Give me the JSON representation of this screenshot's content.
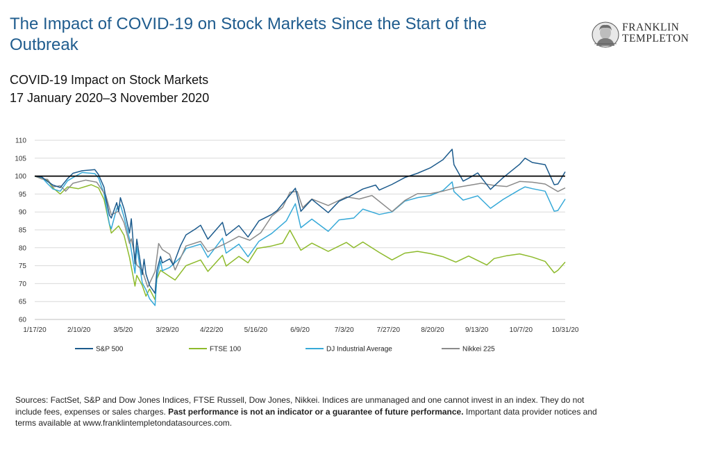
{
  "page": {
    "title": "The Impact of COVID-19 on Stock Markets Since the Start of the Outbreak",
    "subtitle_line1": "COVID-19 Impact on Stock Markets",
    "subtitle_line2": "17 January 2020–3 November 2020",
    "logo_line1": "FRANKLIN",
    "logo_line2": "TEMPLETON",
    "logo_icon": "benjamin-franklin-portrait-icon",
    "footnote_part1": "Sources: FactSet, S&P and Dow Jones Indices, FTSE Russell, Dow Jones, Nikkei. Indices are unmanaged and one cannot invest in an index. They do not include fees, expenses or sales charges. ",
    "footnote_bold": "Past performance is not an indicator or a guarantee of future performance.",
    "footnote_part2": " Important data provider notices and terms available at www.franklintempletondatasources.com."
  },
  "colors": {
    "title": "#1f5c8e",
    "sp500": "#1b5a8c",
    "ftse": "#8dba2b",
    "dj": "#36a9d8",
    "nikkei": "#8a8a8a",
    "baseline": "#000000",
    "grid": "#d9d9d9"
  },
  "chart_data": {
    "type": "line",
    "x_start": "2020-01-17",
    "x_end": "2020-11-03",
    "x_tick_labels": [
      "1/17/20",
      "2/10/20",
      "3/5/20",
      "3/29/20",
      "4/22/20",
      "5/16/20",
      "6/9/20",
      "7/3/20",
      "7/27/20",
      "8/20/20",
      "9/13/20",
      "10/7/20",
      "10/31/20"
    ],
    "y_ticks": [
      60,
      65,
      70,
      75,
      80,
      85,
      90,
      95,
      100,
      105,
      110
    ],
    "ylim": [
      60,
      110
    ],
    "reference_line": 100,
    "grid": true,
    "legend_position": "bottom",
    "series": [
      {
        "name": "S&P 500",
        "color": "#1b5a8c",
        "points": [
          [
            "2020-01-17",
            100
          ],
          [
            "2020-01-21",
            99.7
          ],
          [
            "2020-01-24",
            98.5
          ],
          [
            "2020-01-27",
            97.5
          ],
          [
            "2020-01-31",
            96.8
          ],
          [
            "2020-02-04",
            99.3
          ],
          [
            "2020-02-07",
            100.8
          ],
          [
            "2020-02-12",
            101.5
          ],
          [
            "2020-02-19",
            101.8
          ],
          [
            "2020-02-21",
            100.4
          ],
          [
            "2020-02-24",
            96.9
          ],
          [
            "2020-02-25",
            93.9
          ],
          [
            "2020-02-27",
            89.1
          ],
          [
            "2020-02-28",
            88.3
          ],
          [
            "2020-03-02",
            92.6
          ],
          [
            "2020-03-03",
            90.1
          ],
          [
            "2020-03-04",
            94.0
          ],
          [
            "2020-03-06",
            90.9
          ],
          [
            "2020-03-09",
            84.1
          ],
          [
            "2020-03-10",
            88.1
          ],
          [
            "2020-03-12",
            75.5
          ],
          [
            "2020-03-13",
            82.4
          ],
          [
            "2020-03-16",
            72.5
          ],
          [
            "2020-03-17",
            76.8
          ],
          [
            "2020-03-18",
            72.7
          ],
          [
            "2020-03-20",
            69.5
          ],
          [
            "2020-03-23",
            67.3
          ],
          [
            "2020-03-24",
            73.6
          ],
          [
            "2020-03-26",
            77.6
          ],
          [
            "2020-03-27",
            75.8
          ],
          [
            "2020-03-31",
            76.9
          ],
          [
            "2020-04-02",
            75.2
          ],
          [
            "2020-04-06",
            80.6
          ],
          [
            "2020-04-09",
            83.6
          ],
          [
            "2020-04-14",
            85.2
          ],
          [
            "2020-04-17",
            86.3
          ],
          [
            "2020-04-21",
            82.4
          ],
          [
            "2020-04-29",
            87.1
          ],
          [
            "2020-05-01",
            83.4
          ],
          [
            "2020-05-08",
            86.2
          ],
          [
            "2020-05-13",
            83.0
          ],
          [
            "2020-05-19",
            87.5
          ],
          [
            "2020-05-26",
            89.3
          ],
          [
            "2020-05-29",
            90.4
          ],
          [
            "2020-06-03",
            93.5
          ],
          [
            "2020-06-08",
            96.6
          ],
          [
            "2020-06-11",
            90.2
          ],
          [
            "2020-06-17",
            93.5
          ],
          [
            "2020-06-26",
            89.8
          ],
          [
            "2020-07-02",
            93.0
          ],
          [
            "2020-07-08",
            94.4
          ],
          [
            "2020-07-15",
            96.4
          ],
          [
            "2020-07-22",
            97.5
          ],
          [
            "2020-07-24",
            96.1
          ],
          [
            "2020-07-31",
            97.7
          ],
          [
            "2020-08-07",
            99.6
          ],
          [
            "2020-08-14",
            100.8
          ],
          [
            "2020-08-21",
            102.3
          ],
          [
            "2020-08-28",
            104.6
          ],
          [
            "2020-09-02",
            107.5
          ],
          [
            "2020-09-03",
            103.2
          ],
          [
            "2020-09-08",
            98.6
          ],
          [
            "2020-09-11",
            99.4
          ],
          [
            "2020-09-16",
            100.9
          ],
          [
            "2020-09-23",
            96.3
          ],
          [
            "2020-09-30",
            99.6
          ],
          [
            "2020-10-09",
            103.3
          ],
          [
            "2020-10-12",
            105.0
          ],
          [
            "2020-10-16",
            103.8
          ],
          [
            "2020-10-23",
            103.2
          ],
          [
            "2020-10-28",
            97.6
          ],
          [
            "2020-10-30",
            97.8
          ],
          [
            "2020-11-03",
            101.2
          ]
        ]
      },
      {
        "name": "FTSE 100",
        "color": "#8dba2b",
        "points": [
          [
            "2020-01-17",
            100
          ],
          [
            "2020-01-21",
            99.2
          ],
          [
            "2020-01-24",
            98.9
          ],
          [
            "2020-01-27",
            96.7
          ],
          [
            "2020-01-31",
            95.0
          ],
          [
            "2020-02-04",
            97.0
          ],
          [
            "2020-02-10",
            96.5
          ],
          [
            "2020-02-17",
            97.6
          ],
          [
            "2020-02-21",
            96.7
          ],
          [
            "2020-02-24",
            93.5
          ],
          [
            "2020-02-28",
            84.1
          ],
          [
            "2020-03-03",
            86.1
          ],
          [
            "2020-03-06",
            83.5
          ],
          [
            "2020-03-09",
            77.3
          ],
          [
            "2020-03-12",
            69.3
          ],
          [
            "2020-03-13",
            72.3
          ],
          [
            "2020-03-16",
            69.5
          ],
          [
            "2020-03-18",
            66.5
          ],
          [
            "2020-03-20",
            68.5
          ],
          [
            "2020-03-23",
            65.5
          ],
          [
            "2020-03-24",
            71.3
          ],
          [
            "2020-03-26",
            73.7
          ],
          [
            "2020-03-31",
            72.0
          ],
          [
            "2020-04-03",
            71.0
          ],
          [
            "2020-04-09",
            75.0
          ],
          [
            "2020-04-17",
            76.6
          ],
          [
            "2020-04-21",
            73.4
          ],
          [
            "2020-04-29",
            77.9
          ],
          [
            "2020-05-01",
            74.9
          ],
          [
            "2020-05-08",
            77.6
          ],
          [
            "2020-05-13",
            75.8
          ],
          [
            "2020-05-18",
            79.8
          ],
          [
            "2020-05-26",
            80.5
          ],
          [
            "2020-06-01",
            81.3
          ],
          [
            "2020-06-05",
            84.9
          ],
          [
            "2020-06-11",
            79.3
          ],
          [
            "2020-06-17",
            81.3
          ],
          [
            "2020-06-26",
            79.0
          ],
          [
            "2020-07-06",
            81.5
          ],
          [
            "2020-07-10",
            80.0
          ],
          [
            "2020-07-15",
            81.6
          ],
          [
            "2020-07-24",
            78.7
          ],
          [
            "2020-07-31",
            76.6
          ],
          [
            "2020-08-07",
            78.5
          ],
          [
            "2020-08-14",
            79.0
          ],
          [
            "2020-08-21",
            78.4
          ],
          [
            "2020-08-28",
            77.5
          ],
          [
            "2020-09-04",
            76.0
          ],
          [
            "2020-09-11",
            77.7
          ],
          [
            "2020-09-21",
            75.2
          ],
          [
            "2020-09-25",
            77.0
          ],
          [
            "2020-10-02",
            77.8
          ],
          [
            "2020-10-09",
            78.3
          ],
          [
            "2020-10-16",
            77.4
          ],
          [
            "2020-10-23",
            76.2
          ],
          [
            "2020-10-28",
            73.0
          ],
          [
            "2020-10-30",
            73.7
          ],
          [
            "2020-11-03",
            76.0
          ]
        ]
      },
      {
        "name": "DJ Industrial Average",
        "color": "#36a9d8",
        "points": [
          [
            "2020-01-17",
            100
          ],
          [
            "2020-01-21",
            99.6
          ],
          [
            "2020-01-24",
            97.9
          ],
          [
            "2020-01-27",
            96.4
          ],
          [
            "2020-01-31",
            95.8
          ],
          [
            "2020-02-04",
            98.7
          ],
          [
            "2020-02-07",
            99.6
          ],
          [
            "2020-02-12",
            101.0
          ],
          [
            "2020-02-19",
            100.7
          ],
          [
            "2020-02-21",
            99.5
          ],
          [
            "2020-02-24",
            95.1
          ],
          [
            "2020-02-27",
            86.6
          ],
          [
            "2020-02-28",
            85.3
          ],
          [
            "2020-03-02",
            91.0
          ],
          [
            "2020-03-04",
            92.0
          ],
          [
            "2020-03-06",
            88.6
          ],
          [
            "2020-03-09",
            82.5
          ],
          [
            "2020-03-12",
            72.9
          ],
          [
            "2020-03-13",
            80.3
          ],
          [
            "2020-03-16",
            70.2
          ],
          [
            "2020-03-18",
            68.3
          ],
          [
            "2020-03-20",
            65.8
          ],
          [
            "2020-03-23",
            63.9
          ],
          [
            "2020-03-24",
            71.7
          ],
          [
            "2020-03-26",
            76.3
          ],
          [
            "2020-03-27",
            73.6
          ],
          [
            "2020-03-31",
            74.5
          ],
          [
            "2020-04-06",
            77.3
          ],
          [
            "2020-04-09",
            79.8
          ],
          [
            "2020-04-17",
            81.0
          ],
          [
            "2020-04-21",
            77.3
          ],
          [
            "2020-04-29",
            82.7
          ],
          [
            "2020-05-01",
            78.5
          ],
          [
            "2020-05-08",
            81.0
          ],
          [
            "2020-05-13",
            77.5
          ],
          [
            "2020-05-19",
            81.8
          ],
          [
            "2020-05-26",
            84.0
          ],
          [
            "2020-06-03",
            87.5
          ],
          [
            "2020-06-08",
            92.3
          ],
          [
            "2020-06-11",
            85.6
          ],
          [
            "2020-06-17",
            88.0
          ],
          [
            "2020-06-26",
            84.6
          ],
          [
            "2020-07-02",
            87.8
          ],
          [
            "2020-07-10",
            88.3
          ],
          [
            "2020-07-15",
            90.8
          ],
          [
            "2020-07-24",
            89.3
          ],
          [
            "2020-07-31",
            90.0
          ],
          [
            "2020-08-07",
            93.0
          ],
          [
            "2020-08-14",
            94.0
          ],
          [
            "2020-08-21",
            94.6
          ],
          [
            "2020-08-28",
            96.0
          ],
          [
            "2020-09-02",
            98.4
          ],
          [
            "2020-09-03",
            95.7
          ],
          [
            "2020-09-08",
            93.3
          ],
          [
            "2020-09-16",
            94.5
          ],
          [
            "2020-09-23",
            91.0
          ],
          [
            "2020-09-30",
            93.5
          ],
          [
            "2020-10-09",
            96.2
          ],
          [
            "2020-10-12",
            97.0
          ],
          [
            "2020-10-16",
            96.5
          ],
          [
            "2020-10-23",
            95.8
          ],
          [
            "2020-10-28",
            90.2
          ],
          [
            "2020-10-30",
            90.4
          ],
          [
            "2020-11-03",
            93.6
          ]
        ]
      },
      {
        "name": "Nikkei 225",
        "color": "#8a8a8a",
        "points": [
          [
            "2020-01-17",
            100
          ],
          [
            "2020-01-21",
            99.2
          ],
          [
            "2020-01-24",
            99.1
          ],
          [
            "2020-01-27",
            97.0
          ],
          [
            "2020-01-31",
            97.3
          ],
          [
            "2020-02-03",
            95.8
          ],
          [
            "2020-02-07",
            98.0
          ],
          [
            "2020-02-14",
            98.9
          ],
          [
            "2020-02-20",
            98.3
          ],
          [
            "2020-02-25",
            94.6
          ],
          [
            "2020-02-28",
            89.2
          ],
          [
            "2020-03-03",
            90.2
          ],
          [
            "2020-03-06",
            87.0
          ],
          [
            "2020-03-09",
            81.2
          ],
          [
            "2020-03-10",
            82.5
          ],
          [
            "2020-03-13",
            75.2
          ],
          [
            "2020-03-16",
            73.7
          ],
          [
            "2020-03-19",
            69.0
          ],
          [
            "2020-03-23",
            73.4
          ],
          [
            "2020-03-25",
            81.2
          ],
          [
            "2020-03-27",
            79.5
          ],
          [
            "2020-03-31",
            78.2
          ],
          [
            "2020-04-03",
            73.8
          ],
          [
            "2020-04-09",
            80.5
          ],
          [
            "2020-04-17",
            81.8
          ],
          [
            "2020-04-21",
            78.9
          ],
          [
            "2020-04-30",
            81.0
          ],
          [
            "2020-05-08",
            83.2
          ],
          [
            "2020-05-14",
            82.1
          ],
          [
            "2020-05-20",
            84.2
          ],
          [
            "2020-05-26",
            88.8
          ],
          [
            "2020-06-01",
            91.3
          ],
          [
            "2020-06-05",
            95.5
          ],
          [
            "2020-06-09",
            95.7
          ],
          [
            "2020-06-12",
            91.2
          ],
          [
            "2020-06-17",
            93.6
          ],
          [
            "2020-06-26",
            91.8
          ],
          [
            "2020-07-06",
            94.2
          ],
          [
            "2020-07-13",
            93.6
          ],
          [
            "2020-07-20",
            94.6
          ],
          [
            "2020-07-31",
            90.1
          ],
          [
            "2020-08-07",
            93.2
          ],
          [
            "2020-08-14",
            95.1
          ],
          [
            "2020-08-21",
            95.1
          ],
          [
            "2020-08-28",
            95.8
          ],
          [
            "2020-09-04",
            96.8
          ],
          [
            "2020-09-11",
            97.4
          ],
          [
            "2020-09-18",
            98.0
          ],
          [
            "2020-09-25",
            97.4
          ],
          [
            "2020-10-02",
            97.1
          ],
          [
            "2020-10-09",
            98.5
          ],
          [
            "2020-10-16",
            98.3
          ],
          [
            "2020-10-23",
            97.8
          ],
          [
            "2020-10-30",
            95.7
          ],
          [
            "2020-11-03",
            96.7
          ]
        ]
      }
    ]
  }
}
